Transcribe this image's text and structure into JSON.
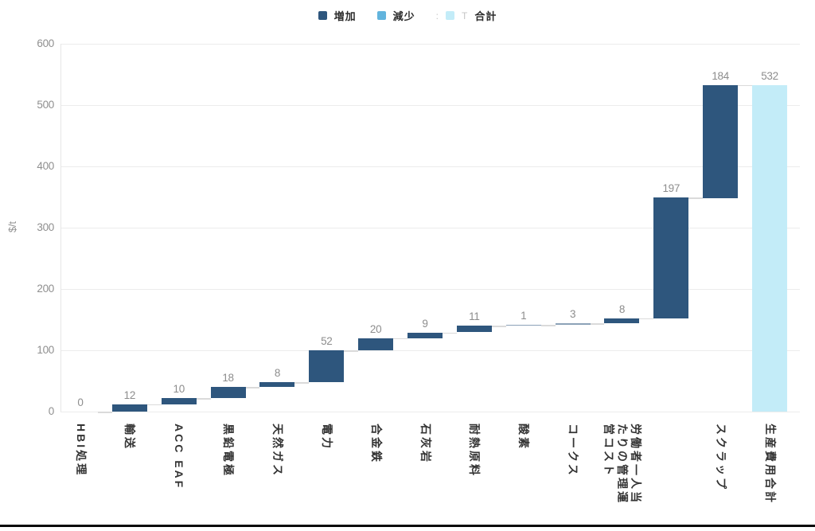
{
  "chart_data": {
    "type": "waterfall-bar",
    "ylabel": "$/t",
    "ylim": [
      0,
      600
    ],
    "yticks": [
      0,
      100,
      200,
      300,
      400,
      500,
      600
    ],
    "grid": true,
    "legend": {
      "position": "top-center",
      "items": [
        {
          "type": "increase",
          "label": "増加",
          "color": "#2e567d"
        },
        {
          "type": "decrease",
          "label": "減少",
          "color": "#62b4dd"
        },
        {
          "type": "total",
          "label": "合計",
          "color": "#c3ecf8"
        }
      ],
      "glitch_before_total_swatch": ":",
      "glitch_after_total_swatch": "T"
    },
    "colors": {
      "increase": "#2e567d",
      "decrease": "#62b4dd",
      "total": "#c3ecf8"
    },
    "categories": [
      "HBI処理",
      "輸送",
      "ACC EAF",
      "黒鉛電極",
      "天然ガス",
      "電力",
      "合金鉄",
      "石灰岩",
      "耐熱原料",
      "酸素",
      "コークス",
      "労働者一人当\nたりの管理運\n営コスト",
      "",
      "スクラップ",
      "生産費用合計"
    ],
    "values": [
      0,
      12,
      10,
      18,
      8,
      52,
      20,
      9,
      11,
      1,
      3,
      8,
      197,
      184,
      532
    ],
    "bar_types": [
      "increase",
      "increase",
      "increase",
      "increase",
      "increase",
      "increase",
      "increase",
      "increase",
      "increase",
      "increase",
      "increase",
      "increase",
      "increase",
      "increase",
      "total"
    ],
    "value_labels": [
      "0",
      "12",
      "10",
      "18",
      "8",
      "52",
      "20",
      "9",
      "11",
      "1",
      "3",
      "8",
      "197",
      "184",
      "532"
    ]
  }
}
